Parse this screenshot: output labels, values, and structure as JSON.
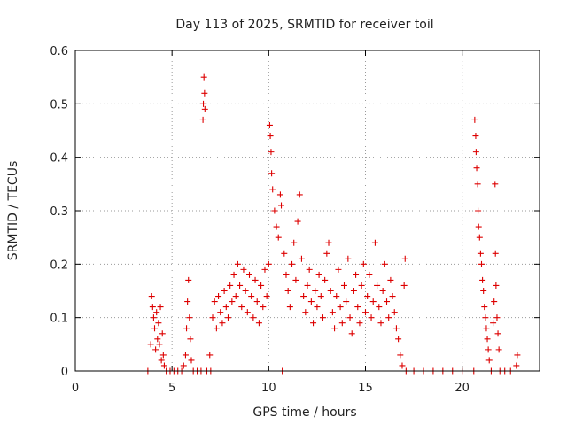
{
  "chart_data": {
    "type": "scatter",
    "title": "Day 113 of 2025, SRMTID for receiver toil",
    "xlabel": "GPS time / hours",
    "ylabel": "SRMTID / TECUs",
    "xlim": [
      0,
      24
    ],
    "ylim": [
      0,
      0.6
    ],
    "x_ticks": [
      0,
      5,
      10,
      15,
      20
    ],
    "x_tick_labels": [
      "0",
      "5",
      "10",
      "15",
      "20"
    ],
    "y_ticks": [
      0,
      0.1,
      0.2,
      0.3,
      0.4,
      0.5,
      0.6
    ],
    "y_tick_labels": [
      "0",
      "0.1",
      "0.2",
      "0.3",
      "0.4",
      "0.5",
      "0.6"
    ],
    "grid": true,
    "marker": "plus",
    "color": "#dd0000",
    "series": [
      {
        "name": "SRMTID",
        "points": [
          [
            3.75,
            0.0
          ],
          [
            3.9,
            0.05
          ],
          [
            3.95,
            0.14
          ],
          [
            4.0,
            0.12
          ],
          [
            4.05,
            0.1
          ],
          [
            4.1,
            0.08
          ],
          [
            4.15,
            0.04
          ],
          [
            4.2,
            0.11
          ],
          [
            4.25,
            0.06
          ],
          [
            4.3,
            0.09
          ],
          [
            4.35,
            0.05
          ],
          [
            4.4,
            0.12
          ],
          [
            4.45,
            0.02
          ],
          [
            4.5,
            0.07
          ],
          [
            4.55,
            0.03
          ],
          [
            4.6,
            0.01
          ],
          [
            4.7,
            0.0
          ],
          [
            4.9,
            0.0
          ],
          [
            5.1,
            0.0
          ],
          [
            5.3,
            0.0
          ],
          [
            5.5,
            0.0
          ],
          [
            5.6,
            0.01
          ],
          [
            5.7,
            0.03
          ],
          [
            5.75,
            0.08
          ],
          [
            5.8,
            0.13
          ],
          [
            5.85,
            0.17
          ],
          [
            5.9,
            0.1
          ],
          [
            5.95,
            0.06
          ],
          [
            6.0,
            0.02
          ],
          [
            6.1,
            0.0
          ],
          [
            6.3,
            0.0
          ],
          [
            6.5,
            0.0
          ],
          [
            6.6,
            0.47
          ],
          [
            6.62,
            0.5
          ],
          [
            6.65,
            0.55
          ],
          [
            6.68,
            0.52
          ],
          [
            6.7,
            0.49
          ],
          [
            6.8,
            0.0
          ],
          [
            6.95,
            0.03
          ],
          [
            7.0,
            0.0
          ],
          [
            7.1,
            0.1
          ],
          [
            7.2,
            0.13
          ],
          [
            7.3,
            0.08
          ],
          [
            7.4,
            0.14
          ],
          [
            7.5,
            0.11
          ],
          [
            7.6,
            0.09
          ],
          [
            7.7,
            0.15
          ],
          [
            7.8,
            0.12
          ],
          [
            7.9,
            0.1
          ],
          [
            8.0,
            0.16
          ],
          [
            8.1,
            0.13
          ],
          [
            8.2,
            0.18
          ],
          [
            8.3,
            0.14
          ],
          [
            8.4,
            0.2
          ],
          [
            8.5,
            0.16
          ],
          [
            8.6,
            0.12
          ],
          [
            8.7,
            0.19
          ],
          [
            8.8,
            0.15
          ],
          [
            8.9,
            0.11
          ],
          [
            9.0,
            0.18
          ],
          [
            9.1,
            0.14
          ],
          [
            9.2,
            0.1
          ],
          [
            9.3,
            0.17
          ],
          [
            9.4,
            0.13
          ],
          [
            9.5,
            0.09
          ],
          [
            9.6,
            0.16
          ],
          [
            9.7,
            0.12
          ],
          [
            9.8,
            0.19
          ],
          [
            9.9,
            0.14
          ],
          [
            10.0,
            0.2
          ],
          [
            10.05,
            0.46
          ],
          [
            10.08,
            0.44
          ],
          [
            10.12,
            0.41
          ],
          [
            10.15,
            0.37
          ],
          [
            10.2,
            0.34
          ],
          [
            10.3,
            0.3
          ],
          [
            10.4,
            0.27
          ],
          [
            10.5,
            0.25
          ],
          [
            10.6,
            0.33
          ],
          [
            10.65,
            0.31
          ],
          [
            10.7,
            0.0
          ],
          [
            10.8,
            0.22
          ],
          [
            10.9,
            0.18
          ],
          [
            11.0,
            0.15
          ],
          [
            11.1,
            0.12
          ],
          [
            11.2,
            0.2
          ],
          [
            11.3,
            0.24
          ],
          [
            11.4,
            0.17
          ],
          [
            11.5,
            0.28
          ],
          [
            11.6,
            0.33
          ],
          [
            11.7,
            0.21
          ],
          [
            11.8,
            0.14
          ],
          [
            11.9,
            0.11
          ],
          [
            12.0,
            0.16
          ],
          [
            12.1,
            0.19
          ],
          [
            12.2,
            0.13
          ],
          [
            12.3,
            0.09
          ],
          [
            12.4,
            0.15
          ],
          [
            12.5,
            0.12
          ],
          [
            12.6,
            0.18
          ],
          [
            12.7,
            0.14
          ],
          [
            12.8,
            0.1
          ],
          [
            12.9,
            0.17
          ],
          [
            13.0,
            0.22
          ],
          [
            13.1,
            0.24
          ],
          [
            13.2,
            0.15
          ],
          [
            13.3,
            0.11
          ],
          [
            13.4,
            0.08
          ],
          [
            13.5,
            0.14
          ],
          [
            13.6,
            0.19
          ],
          [
            13.7,
            0.12
          ],
          [
            13.8,
            0.09
          ],
          [
            13.9,
            0.16
          ],
          [
            14.0,
            0.13
          ],
          [
            14.1,
            0.21
          ],
          [
            14.2,
            0.1
          ],
          [
            14.3,
            0.07
          ],
          [
            14.4,
            0.15
          ],
          [
            14.5,
            0.18
          ],
          [
            14.6,
            0.12
          ],
          [
            14.7,
            0.09
          ],
          [
            14.8,
            0.16
          ],
          [
            14.9,
            0.2
          ],
          [
            15.0,
            0.11
          ],
          [
            15.1,
            0.14
          ],
          [
            15.2,
            0.18
          ],
          [
            15.3,
            0.1
          ],
          [
            15.4,
            0.13
          ],
          [
            15.5,
            0.24
          ],
          [
            15.6,
            0.16
          ],
          [
            15.7,
            0.12
          ],
          [
            15.8,
            0.09
          ],
          [
            15.9,
            0.15
          ],
          [
            16.0,
            0.2
          ],
          [
            16.1,
            0.13
          ],
          [
            16.2,
            0.1
          ],
          [
            16.3,
            0.17
          ],
          [
            16.4,
            0.14
          ],
          [
            16.5,
            0.11
          ],
          [
            16.6,
            0.08
          ],
          [
            16.7,
            0.06
          ],
          [
            16.8,
            0.03
          ],
          [
            16.9,
            0.01
          ],
          [
            17.0,
            0.16
          ],
          [
            17.05,
            0.21
          ],
          [
            17.1,
            0.0
          ],
          [
            17.5,
            0.0
          ],
          [
            18.0,
            0.0
          ],
          [
            18.5,
            0.0
          ],
          [
            19.0,
            0.0
          ],
          [
            19.5,
            0.0
          ],
          [
            20.0,
            0.0
          ],
          [
            20.6,
            0.0
          ],
          [
            20.65,
            0.47
          ],
          [
            20.7,
            0.44
          ],
          [
            20.72,
            0.41
          ],
          [
            20.75,
            0.38
          ],
          [
            20.8,
            0.35
          ],
          [
            20.82,
            0.3
          ],
          [
            20.85,
            0.27
          ],
          [
            20.9,
            0.25
          ],
          [
            20.95,
            0.22
          ],
          [
            21.0,
            0.2
          ],
          [
            21.05,
            0.17
          ],
          [
            21.1,
            0.15
          ],
          [
            21.15,
            0.12
          ],
          [
            21.2,
            0.1
          ],
          [
            21.25,
            0.08
          ],
          [
            21.3,
            0.06
          ],
          [
            21.35,
            0.04
          ],
          [
            21.4,
            0.02
          ],
          [
            21.5,
            0.0
          ],
          [
            21.6,
            0.09
          ],
          [
            21.65,
            0.13
          ],
          [
            21.7,
            0.35
          ],
          [
            21.72,
            0.22
          ],
          [
            21.75,
            0.16
          ],
          [
            21.8,
            0.1
          ],
          [
            21.85,
            0.07
          ],
          [
            21.9,
            0.04
          ],
          [
            21.95,
            0.0
          ],
          [
            22.2,
            0.0
          ],
          [
            22.5,
            0.0
          ],
          [
            22.8,
            0.01
          ],
          [
            22.85,
            0.03
          ]
        ]
      }
    ]
  }
}
